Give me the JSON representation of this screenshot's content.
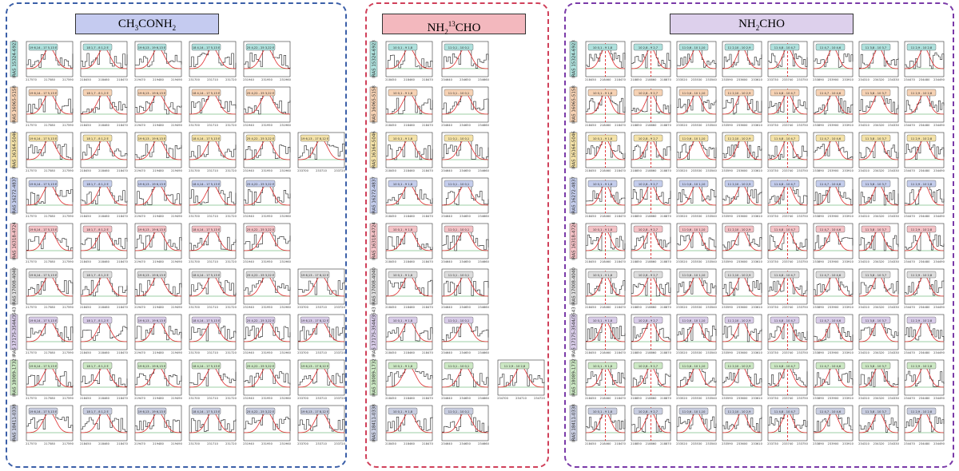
{
  "colors": {
    "blue_border": "#3b5fa8",
    "red_border": "#d0405a",
    "purple_border": "#7a3aa8",
    "blue_title": "#c5cbf0",
    "red_title": "#f3b8be",
    "purple_title": "#ddd0ec",
    "spectrum": "#222222",
    "fit": "#e0292b",
    "baseline": "#3aa04a"
  },
  "panels": [
    {
      "key": "ch3conh2",
      "title_main": "CH",
      "title_sub1": "3",
      "title_mid": "CONH",
      "title_sub2": "2",
      "title_sup": "",
      "title_end": "",
      "columns": 6,
      "freq_groups": [
        [
          "217570",
          "217580",
          "217590"
        ],
        [
          "218450",
          "218460",
          "218470"
        ],
        [
          "219470",
          "219480",
          "219490"
        ],
        [
          "231700",
          "231710",
          "231720"
        ],
        [
          "231940",
          "231950",
          "231960"
        ],
        [
          "233700",
          "233710",
          "233720"
        ]
      ]
    },
    {
      "key": "nh213cho",
      "title_main": "NH",
      "title_sub1": "2",
      "title_mid": "",
      "title_sub2": "",
      "title_sup": "13",
      "title_end": "CHO",
      "columns": 3,
      "freq_groups": [
        [
          "218450",
          "218460",
          "218470"
        ],
        [
          "234640",
          "234650",
          "234660"
        ],
        [
          "234700",
          "234710",
          "234720"
        ]
      ]
    },
    {
      "key": "nh2cho",
      "title_main": "NH",
      "title_sub1": "2",
      "title_mid": "CHO",
      "title_sub2": "",
      "title_sup": "",
      "title_end": "",
      "columns": 8,
      "freq_groups": [
        [
          "218450",
          "218460",
          "218470"
        ],
        [
          "218850",
          "218860",
          "218870"
        ],
        [
          "233520",
          "233530",
          "233540"
        ],
        [
          "233590",
          "233600",
          "233610"
        ],
        [
          "233730",
          "233740",
          "233750"
        ],
        [
          "233890",
          "233900",
          "233910"
        ],
        [
          "234310",
          "234320",
          "234330"
        ],
        [
          "234470",
          "234480",
          "234490"
        ]
      ]
    }
  ],
  "sources": [
    {
      "name": "IRAS 15324-6923",
      "color": "#aee0dc",
      "ch3": 5,
      "nh2_13": 2,
      "nh2": 8
    },
    {
      "name": "IRAS 16065-5158",
      "color": "#f6d2b4",
      "ch3": 5,
      "nh2_13": 2,
      "nh2": 8
    },
    {
      "name": "IRAS 16164-5046",
      "color": "#f4e2a8",
      "ch3": 6,
      "nh2_13": 2,
      "nh2": 8
    },
    {
      "name": "IRAS 16272-4837",
      "color": "#c4cdec",
      "ch3": 5,
      "nh2_13": 2,
      "nh2": 8
    },
    {
      "name": "IRAS 16318-4724",
      "color": "#f4c2c6",
      "ch3": 5,
      "nh2_13": 2,
      "nh2": 8
    },
    {
      "name": "IRAS 17008-4040",
      "color": "#dcdcdc",
      "ch3": 6,
      "nh2_13": 2,
      "nh2": 8
    },
    {
      "name": "IRAS 17175-3544/3543",
      "color": "#d8cce8",
      "ch3": 6,
      "nh2_13": 2,
      "nh2": 8
    },
    {
      "name": "IRAS 18089-1732",
      "color": "#cce8c4",
      "ch3": 6,
      "nh2_13": 3,
      "nh2": 8
    },
    {
      "name": "IRAS 18411-0338",
      "color": "#c8cde0",
      "ch3": 6,
      "nh2_13": 2,
      "nh2": 8
    }
  ],
  "transition_labels": {
    "ch3conh2": [
      "19 6,14 - 17 5,13 E",
      "18 1,7 - 8 1,2 E",
      "19 6,13 - 19 6,13 E",
      "18 4,14 - 17 5,13 E",
      "25 4,22 - 25 3,22 E",
      "19 6,13 - 17 8,12 E"
    ],
    "nh213cho": [
      "10 0,1 - 9 1,8",
      "11 0,1 - 10 0,1",
      "11 2,9 - 10 2,8"
    ],
    "nh2cho": [
      "10 0,1 - 9 1,8",
      "10 2,8 - 9 2,7",
      "11 0,6 - 10 1,10",
      "11 2,10 - 10 2,9",
      "11 4,8 - 10 4,7",
      "11 4,7 - 10 4,6",
      "11 3,8 - 10 3,7",
      "11 2,9 - 10 2,8"
    ]
  }
}
